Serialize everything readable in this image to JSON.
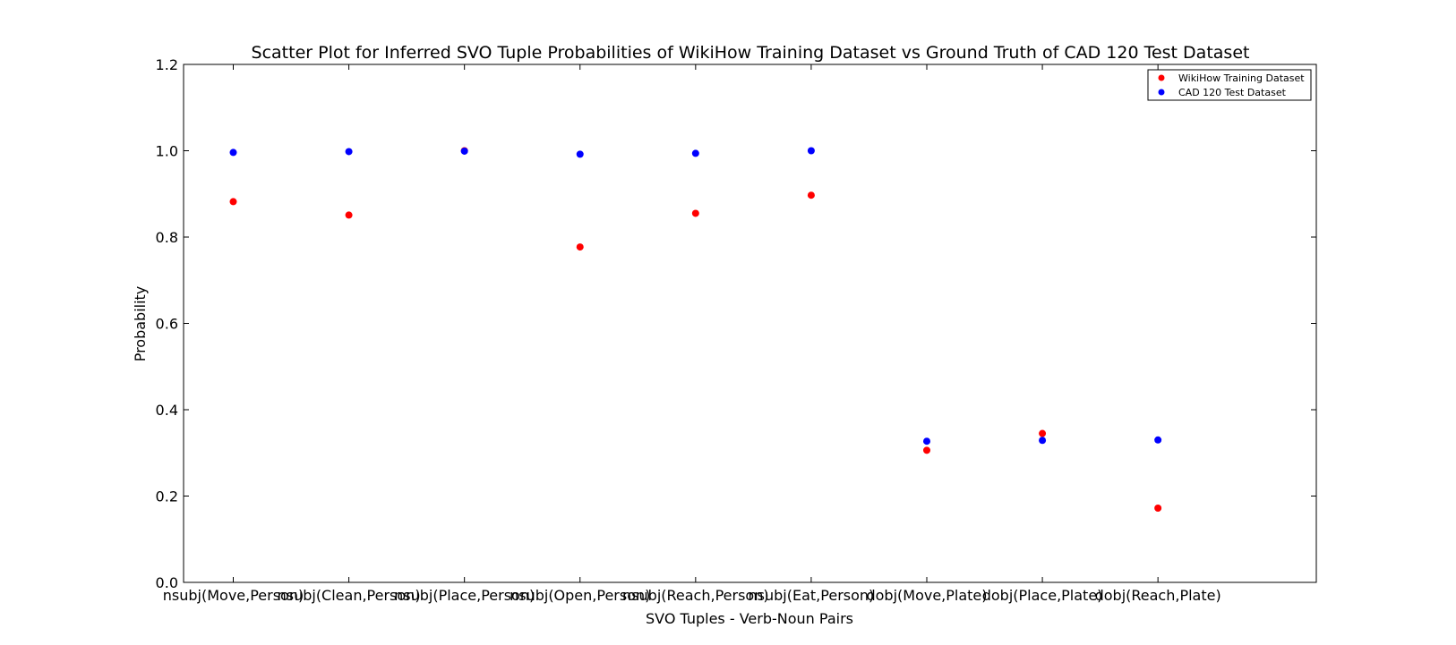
{
  "chart_data": {
    "type": "scatter",
    "title": "Scatter Plot for Inferred SVO Tuple Probabilities of WikiHow Training Dataset vs Ground Truth of CAD 120 Test Dataset",
    "xlabel": "SVO Tuples - Verb-Noun Pairs",
    "ylabel": "Probability",
    "categories": [
      "nsubj(Move,Person)",
      "nsubj(Clean,Person)",
      "nsubj(Place,Person)",
      "nsubj(Open,Person)",
      "nsubj(Reach,Person)",
      "nsubj(Eat,Person)",
      "dobj(Move,Plate)",
      "dobj(Place,Plate)",
      "dobj(Reach,Plate)"
    ],
    "ylim": [
      0.0,
      1.2
    ],
    "yticks": [
      "0.0",
      "0.2",
      "0.4",
      "0.6",
      "0.8",
      "1.0",
      "1.2"
    ],
    "grid": false,
    "legend_position": "top-right",
    "series": [
      {
        "name": "WikiHow Training Dataset",
        "color": "#ff0000",
        "values": [
          0.882,
          0.851,
          1.0,
          0.777,
          0.855,
          0.897,
          0.306,
          0.345,
          0.172
        ]
      },
      {
        "name": "CAD 120 Test Dataset",
        "color": "#0000ff",
        "values": [
          0.996,
          0.998,
          0.999,
          0.992,
          0.994,
          1.0,
          0.327,
          0.329,
          0.33
        ]
      }
    ]
  }
}
